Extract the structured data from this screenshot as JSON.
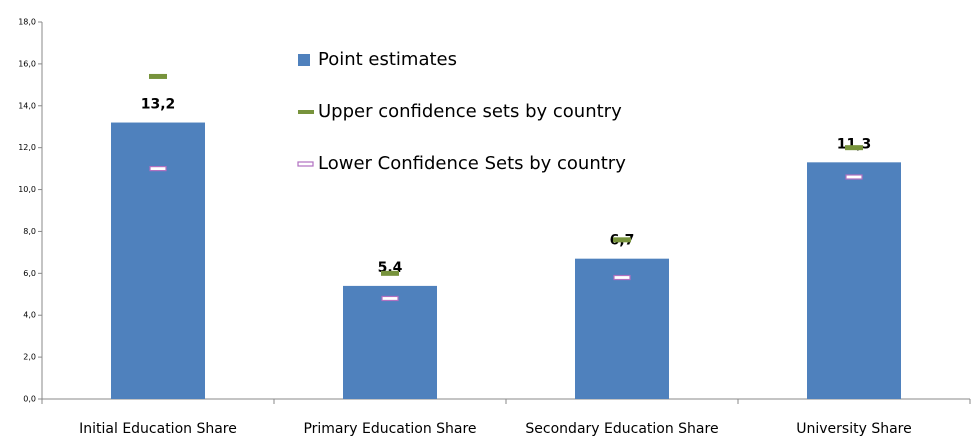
{
  "chart_data": {
    "type": "bar",
    "categories": [
      "Initial Education Share",
      "Primary Education Share",
      "Secondary Education Share",
      "University Share"
    ],
    "series": [
      {
        "name": "Point estimates",
        "color": "#4f81bd",
        "style": "bar",
        "values": [
          13.2,
          5.4,
          6.7,
          11.3
        ],
        "value_labels": [
          "13,2",
          "5,4",
          "6,7",
          "11,3"
        ]
      },
      {
        "name": "Upper confidence sets by country",
        "color": "#77933c",
        "style": "dash",
        "values": [
          15.4,
          6.0,
          7.6,
          12.0
        ]
      },
      {
        "name": "Lower Confidence Sets by country",
        "color": "#b070c0",
        "style": "outlined-dash",
        "values": [
          11.0,
          4.8,
          5.8,
          10.6
        ]
      }
    ],
    "ylim": [
      0,
      18
    ],
    "yticks": [
      {
        "value": 0,
        "label": "0,0"
      },
      {
        "value": 2,
        "label": "2,0"
      },
      {
        "value": 4,
        "label": "4,0"
      },
      {
        "value": 6,
        "label": "6,0"
      },
      {
        "value": 8,
        "label": "8,0"
      },
      {
        "value": 10,
        "label": "10,0"
      },
      {
        "value": 12,
        "label": "12,0"
      },
      {
        "value": 14,
        "label": "14,0"
      },
      {
        "value": 16,
        "label": "16,0"
      },
      {
        "value": 18,
        "label": "18,0"
      }
    ],
    "grid": false
  }
}
